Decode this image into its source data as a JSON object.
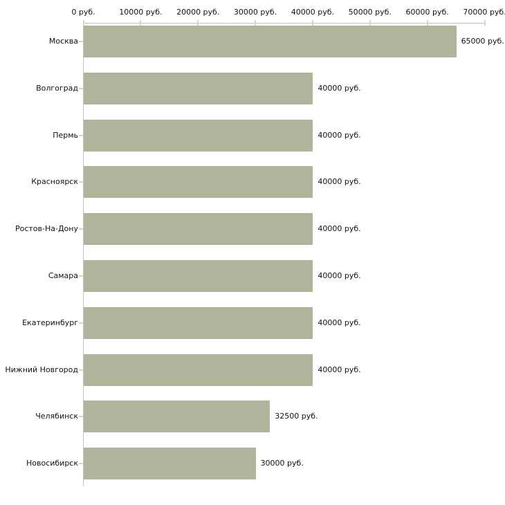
{
  "chart_data": {
    "type": "bar",
    "orientation": "horizontal",
    "title": "",
    "xlabel": "",
    "ylabel": "",
    "unit": "руб.",
    "xlim": [
      0,
      70000
    ],
    "x_tick_step": 10000,
    "x_tick_labels": [
      "0 руб.",
      "10000 руб.",
      "20000 руб.",
      "30000 руб.",
      "40000 руб.",
      "50000 руб.",
      "60000 руб.",
      "70000 руб."
    ],
    "categories": [
      "Москва",
      "Волгоград",
      "Пермь",
      "Красноярск",
      "Ростов-На-Дону",
      "Самара",
      "Екатеринбург",
      "Нижний Новгород",
      "Челябинск",
      "Новосибирск"
    ],
    "values": [
      65000,
      40000,
      40000,
      40000,
      40000,
      40000,
      40000,
      40000,
      32500,
      30000
    ],
    "value_labels": [
      "65000 руб.",
      "40000 руб.",
      "40000 руб.",
      "40000 руб.",
      "40000 руб.",
      "40000 руб.",
      "40000 руб.",
      "40000 руб.",
      "32500 руб.",
      "30000 руб."
    ],
    "grid": false,
    "legend": false,
    "colors": {
      "bar": "#b0b49b",
      "tick": "#d8d9ae",
      "axis": "#c0c0c0",
      "text": "#111111",
      "background": "#ffffff"
    }
  }
}
